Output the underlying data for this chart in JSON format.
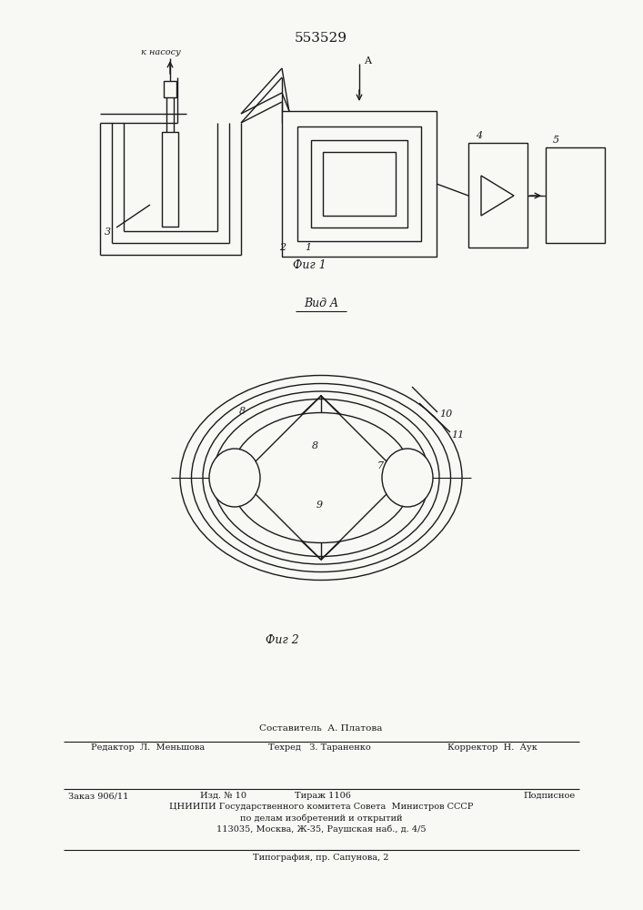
{
  "title": "553529",
  "fig1_label": "Фиг 1",
  "fig2_label": "Фиг 2",
  "view_label": "Вид A",
  "pump_label": "к насосу",
  "A_label": "A",
  "bg_color": "#f8f8f5",
  "line_color": "#1a1a1a",
  "footer_composer": "Составитель  А. Платова",
  "footer_editor": "Редактор  Л.  Меньшова",
  "footer_techred": "Техред   З. Тараненко",
  "footer_corrector": "Корректор  Н.  Аук",
  "footer_order": "Заказ 906/11",
  "footer_izd": "Изд. № 10",
  "footer_tirazh": "Тираж 1106",
  "footer_podp": "Подписное",
  "footer_cniip": "ЦНИИПИ Государственного комитета Совета  Министров СССР",
  "footer_dela": "по делам изобретений и открытий",
  "footer_addr": "113035, Москва, Ж-35, Раушская наб., д. 4/5",
  "footer_tip": "Типография, пр. Сапунова, 2"
}
